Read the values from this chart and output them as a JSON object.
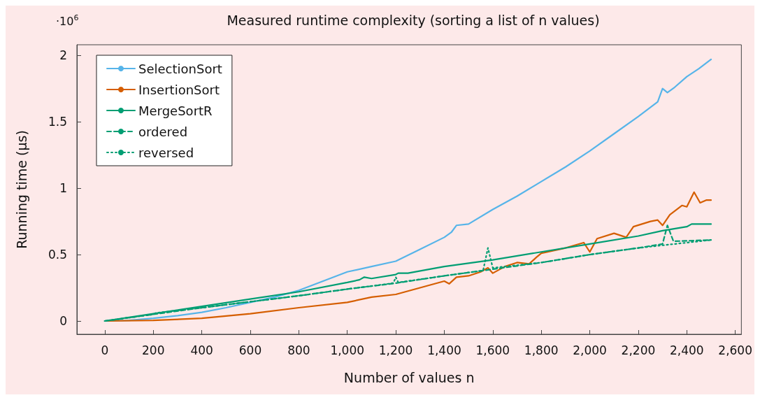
{
  "chart_data": {
    "type": "line",
    "title": "Measured runtime complexity (sorting a list of n values)",
    "xlabel": "Number of values n",
    "ylabel": "Running time (µs)",
    "annotations": [
      "·10$^{6}$"
    ],
    "xlim": [
      -115,
      2625
    ],
    "xticks": [
      0,
      200,
      400,
      600,
      800,
      {
        "value": 1000,
        "label": "1,000"
      },
      {
        "value": 1200,
        "label": "1,200"
      },
      {
        "value": 1400,
        "label": "1,400"
      },
      {
        "value": 1600,
        "label": "1,600"
      },
      {
        "value": 1800,
        "label": "1,800"
      },
      {
        "value": 2000,
        "label": "2,000"
      },
      {
        "value": 2200,
        "label": "2,200"
      },
      {
        "value": 2400,
        "label": "2,400"
      },
      {
        "value": 2600,
        "label": "2,600"
      }
    ],
    "ylim": [
      -0.1,
      2.08
    ],
    "yticks": [
      0,
      0.5,
      1,
      1.5,
      2
    ],
    "grid": false,
    "legend": "top left",
    "marker": "none",
    "series": [
      {
        "name": "SelectionSort",
        "color": "#56b4e9",
        "line_style": "solid",
        "x": [
          0,
          100,
          200,
          300,
          400,
          500,
          600,
          700,
          800,
          900,
          1000,
          1100,
          1200,
          1300,
          1400,
          1430,
          1450,
          1500,
          1600,
          1700,
          1800,
          1900,
          2000,
          2100,
          2200,
          2280,
          2300,
          2320,
          2350,
          2400,
          2450,
          2500
        ],
        "values": [
          0,
          0.005,
          0.02,
          0.04,
          0.065,
          0.1,
          0.14,
          0.18,
          0.23,
          0.3,
          0.37,
          0.41,
          0.45,
          0.54,
          0.63,
          0.67,
          0.72,
          0.73,
          0.84,
          0.94,
          1.05,
          1.16,
          1.28,
          1.41,
          1.54,
          1.65,
          1.75,
          1.72,
          1.76,
          1.84,
          1.9,
          1.97
        ]
      },
      {
        "name": "InsertionSort",
        "color": "#d55e00",
        "line_style": "solid",
        "x": [
          0,
          200,
          400,
          600,
          800,
          1000,
          1100,
          1200,
          1300,
          1400,
          1420,
          1450,
          1500,
          1550,
          1580,
          1600,
          1650,
          1700,
          1750,
          1780,
          1800,
          1850,
          1900,
          1975,
          2000,
          2030,
          2100,
          2150,
          2180,
          2250,
          2280,
          2300,
          2330,
          2380,
          2400,
          2430,
          2455,
          2480,
          2500
        ],
        "values": [
          0,
          0.005,
          0.02,
          0.055,
          0.1,
          0.14,
          0.18,
          0.2,
          0.25,
          0.3,
          0.28,
          0.33,
          0.34,
          0.37,
          0.4,
          0.36,
          0.41,
          0.44,
          0.43,
          0.48,
          0.51,
          0.53,
          0.55,
          0.59,
          0.52,
          0.62,
          0.66,
          0.63,
          0.71,
          0.75,
          0.76,
          0.72,
          0.8,
          0.87,
          0.86,
          0.97,
          0.89,
          0.91,
          0.91
        ]
      },
      {
        "name": "MergeSortR",
        "color": "#009e73",
        "line_style": "solid",
        "x": [
          0,
          200,
          400,
          600,
          800,
          1000,
          1050,
          1070,
          1100,
          1200,
          1210,
          1250,
          1400,
          1600,
          1800,
          2000,
          2200,
          2300,
          2400,
          2420,
          2500
        ],
        "values": [
          0,
          0.055,
          0.11,
          0.165,
          0.22,
          0.29,
          0.31,
          0.33,
          0.32,
          0.35,
          0.36,
          0.36,
          0.41,
          0.46,
          0.52,
          0.58,
          0.64,
          0.68,
          0.71,
          0.73,
          0.73
        ]
      },
      {
        "name": "ordered",
        "color": "#009e73",
        "line_style": "dashed",
        "x": [
          0,
          200,
          400,
          600,
          800,
          1000,
          1200,
          1400,
          1600,
          1800,
          2000,
          2200,
          2300,
          2320,
          2345,
          2500
        ],
        "values": [
          0,
          0.05,
          0.1,
          0.145,
          0.19,
          0.24,
          0.285,
          0.34,
          0.39,
          0.44,
          0.5,
          0.55,
          0.58,
          0.72,
          0.6,
          0.61
        ]
      },
      {
        "name": "reversed",
        "color": "#009e73",
        "line_style": "dotted",
        "x": [
          0,
          200,
          210,
          400,
          600,
          800,
          1000,
          1190,
          1200,
          1210,
          1400,
          1560,
          1580,
          1600,
          1800,
          2000,
          2200,
          2500
        ],
        "values": [
          0,
          0.05,
          0.06,
          0.1,
          0.145,
          0.19,
          0.24,
          0.285,
          0.33,
          0.29,
          0.34,
          0.38,
          0.55,
          0.4,
          0.44,
          0.5,
          0.55,
          0.61
        ]
      }
    ]
  }
}
